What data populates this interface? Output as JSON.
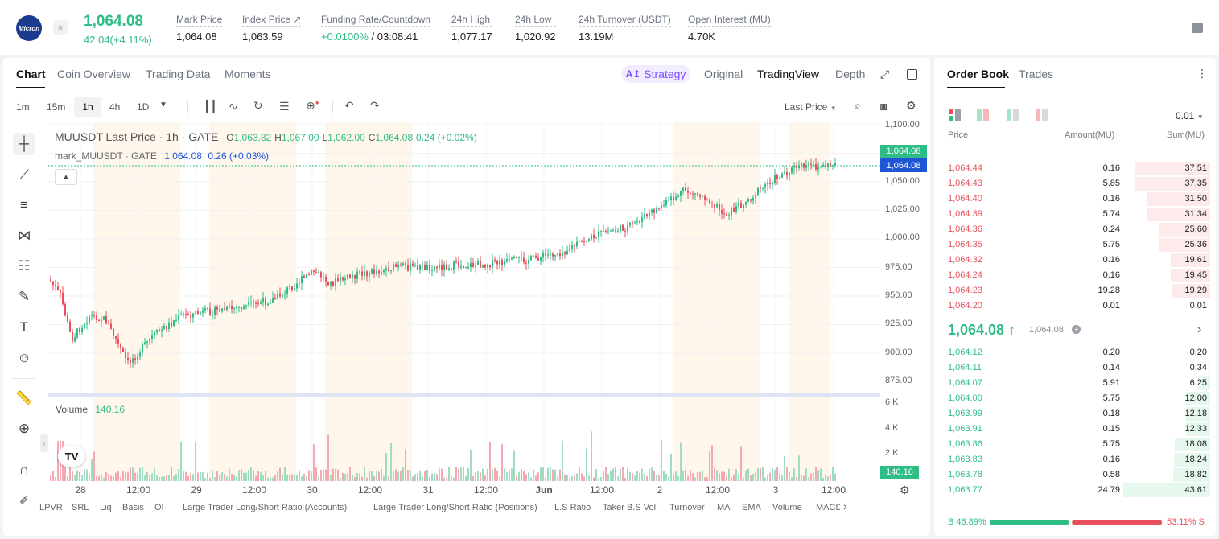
{
  "header": {
    "logo_text": "Micron",
    "last_price": "1,064.08",
    "change": "42.04(+4.11%)",
    "stats": [
      {
        "label": "Mark Price",
        "value": "1,064.08"
      },
      {
        "label": "Index Price ↗",
        "value": "1,063.59"
      },
      {
        "label": "Funding Rate/Countdown",
        "value": "+0.0100%",
        "value2": " / 03:08:41"
      },
      {
        "label": "24h High",
        "value": "1,077.17"
      },
      {
        "label": "24h Low",
        "value": "1,020.92"
      },
      {
        "label": "24h Turnover (USDT)",
        "value": "13.19M"
      },
      {
        "label": "Open Interest (MU)",
        "value": "4.70K"
      }
    ]
  },
  "chart_tabs": [
    "Chart",
    "Coin Overview",
    "Trading Data",
    "Moments"
  ],
  "view_tabs": {
    "strategy": "Strategy",
    "original": "Original",
    "tradingview": "TradingView",
    "depth": "Depth"
  },
  "timeframes": [
    "1m",
    "15m",
    "1h",
    "4h",
    "1D"
  ],
  "price_type": "Last Price",
  "legend": {
    "symbol": "MUUSDT Last Price · 1h · GATE",
    "o_label": "O",
    "o": "1,063.82",
    "h_label": "H",
    "h": "1,067.00",
    "l_label": "L",
    "l": "1,062.00",
    "c_label": "C",
    "c": "1,064.08",
    "chg": "0.24 (+0.02%)",
    "mark": "mark_MUUSDT · GATE",
    "mark_val": "1,064.08",
    "mark_chg": "0.26 (+0.03%)"
  },
  "volume": {
    "label": "Volume",
    "value": "140.16"
  },
  "price_tags": {
    "last": "1,064.08",
    "mark": "1,064.08",
    "volume": "140.16"
  },
  "y_axis": [
    "1,100.00",
    "1,050.00",
    "1,025.00",
    "1,000.00",
    "975.00",
    "950.00",
    "925.00",
    "900.00",
    "875.00"
  ],
  "vol_axis": [
    "6 K",
    "4 K",
    "2 K"
  ],
  "x_axis": [
    "28",
    "12:00",
    "29",
    "12:00",
    "30",
    "12:00",
    "31",
    "12:00",
    "Jun",
    "12:00",
    "2",
    "12:00",
    "3",
    "12:00"
  ],
  "indicators": [
    "LPVR",
    "SRL",
    "Liq",
    "Basis",
    "OI",
    "Large Trader Long/Short Ratio (Accounts)",
    "Large Trader Long/Short Ratio (Positions)",
    "L.S Ratio",
    "Taker B.S Vol.",
    "Turnover",
    "MA",
    "EMA",
    "Volume",
    "MACD"
  ],
  "orderbook": {
    "tabs": [
      "Order Book",
      "Trades"
    ],
    "precision": "0.01",
    "columns": [
      "Price",
      "Amount(MU)",
      "Sum(MU)"
    ],
    "asks": [
      {
        "price": "1,064.44",
        "amount": "0.16",
        "sum": "37.51",
        "depth": 0.86
      },
      {
        "price": "1,064.43",
        "amount": "5.85",
        "sum": "37.35",
        "depth": 0.86
      },
      {
        "price": "1,064.40",
        "amount": "0.16",
        "sum": "31.50",
        "depth": 0.72
      },
      {
        "price": "1,064.39",
        "amount": "5.74",
        "sum": "31.34",
        "depth": 0.72
      },
      {
        "price": "1,064.36",
        "amount": "0.24",
        "sum": "25.60",
        "depth": 0.59
      },
      {
        "price": "1,064.35",
        "amount": "5.75",
        "sum": "25.36",
        "depth": 0.58
      },
      {
        "price": "1,064.32",
        "amount": "0.16",
        "sum": "19.61",
        "depth": 0.45
      },
      {
        "price": "1,064.24",
        "amount": "0.16",
        "sum": "19.45",
        "depth": 0.45
      },
      {
        "price": "1,064.23",
        "amount": "19.28",
        "sum": "19.29",
        "depth": 0.44
      },
      {
        "price": "1,064.20",
        "amount": "0.01",
        "sum": "0.01",
        "depth": 0.0
      }
    ],
    "mid_price": "1,064.08 ↑",
    "mid_mark": "1,064.08",
    "bids": [
      {
        "price": "1,064.12",
        "amount": "0.20",
        "sum": "0.20",
        "depth": 0.0
      },
      {
        "price": "1,064.11",
        "amount": "0.14",
        "sum": "0.34",
        "depth": 0.01
      },
      {
        "price": "1,064.07",
        "amount": "5.91",
        "sum": "6.25",
        "depth": 0.14
      },
      {
        "price": "1,064.00",
        "amount": "5.75",
        "sum": "12.00",
        "depth": 0.28
      },
      {
        "price": "1,063.99",
        "amount": "0.18",
        "sum": "12.18",
        "depth": 0.28
      },
      {
        "price": "1,063.91",
        "amount": "0.15",
        "sum": "12.33",
        "depth": 0.28
      },
      {
        "price": "1,063.86",
        "amount": "5.75",
        "sum": "18.08",
        "depth": 0.41
      },
      {
        "price": "1,063.83",
        "amount": "0.16",
        "sum": "18.24",
        "depth": 0.42
      },
      {
        "price": "1,063.78",
        "amount": "0.58",
        "sum": "18.82",
        "depth": 0.43
      },
      {
        "price": "1,063.77",
        "amount": "24.79",
        "sum": "43.61",
        "depth": 1.0
      }
    ],
    "buy_pct": "B 46.89%",
    "sell_pct": "53.11% S",
    "buy_ratio": 0.4689
  },
  "colors": {
    "up": "#2ebd85",
    "down": "#e8505b",
    "accent": "#7c4dff",
    "mark_line": "#2056d6"
  }
}
